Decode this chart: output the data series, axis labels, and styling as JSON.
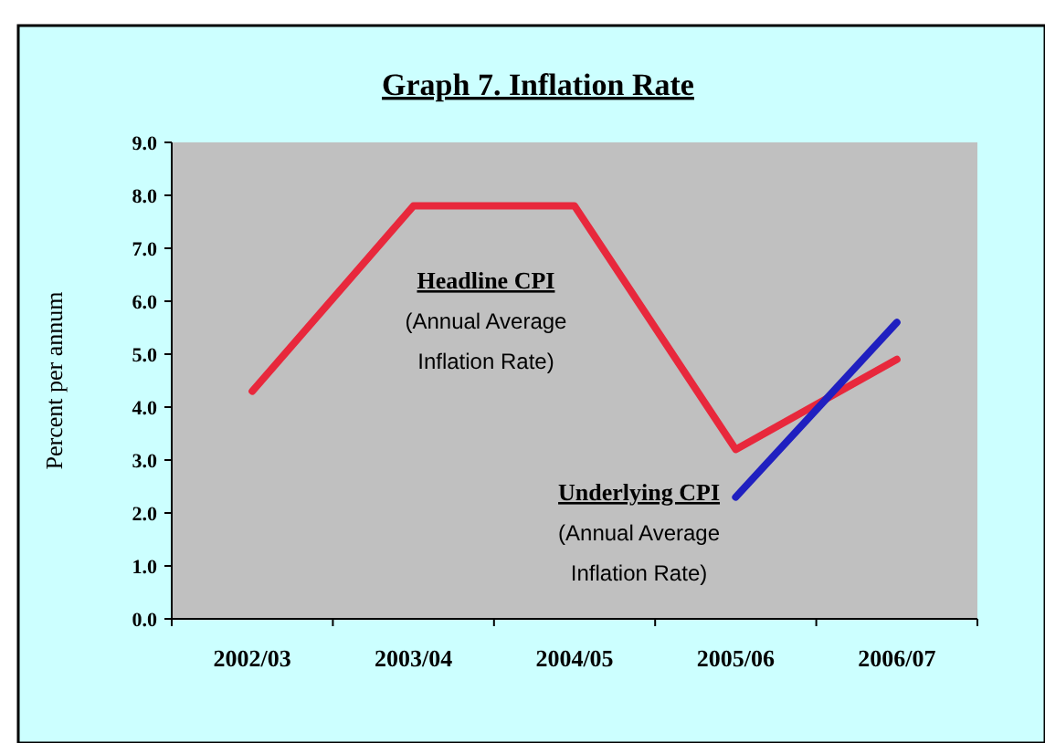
{
  "chart_data": {
    "type": "line",
    "title": "Graph 7. Inflation Rate",
    "ylabel": "Percent per annum",
    "categories": [
      "2002/03",
      "2003/04",
      "2004/05",
      "2005/06",
      "2006/07"
    ],
    "series": [
      {
        "name": "Headline CPI",
        "color": "#e8283c",
        "values": [
          4.3,
          7.8,
          7.8,
          3.2,
          4.9
        ]
      },
      {
        "name": "Underlying CPI",
        "color": "#2020c0",
        "values": [
          null,
          null,
          null,
          2.3,
          5.6
        ]
      }
    ],
    "annotations": [
      "(Annual Average Inflation Rate)",
      "(Annual Average Inflation Rate)"
    ],
    "ylim": [
      0,
      9
    ],
    "yticks": [
      {
        "value": 0,
        "label": "0.0"
      },
      {
        "value": 1,
        "label": "1.0"
      },
      {
        "value": 2,
        "label": "2.0"
      },
      {
        "value": 3,
        "label": "3.0"
      },
      {
        "value": 4,
        "label": "4.0"
      },
      {
        "value": 5,
        "label": "5.0"
      },
      {
        "value": 6,
        "label": "6.0"
      },
      {
        "value": 7,
        "label": "7.0"
      },
      {
        "value": 8,
        "label": "8.0"
      },
      {
        "value": 9,
        "label": "9.0"
      }
    ],
    "grid": false,
    "marker": "none",
    "line_style": "solid"
  }
}
